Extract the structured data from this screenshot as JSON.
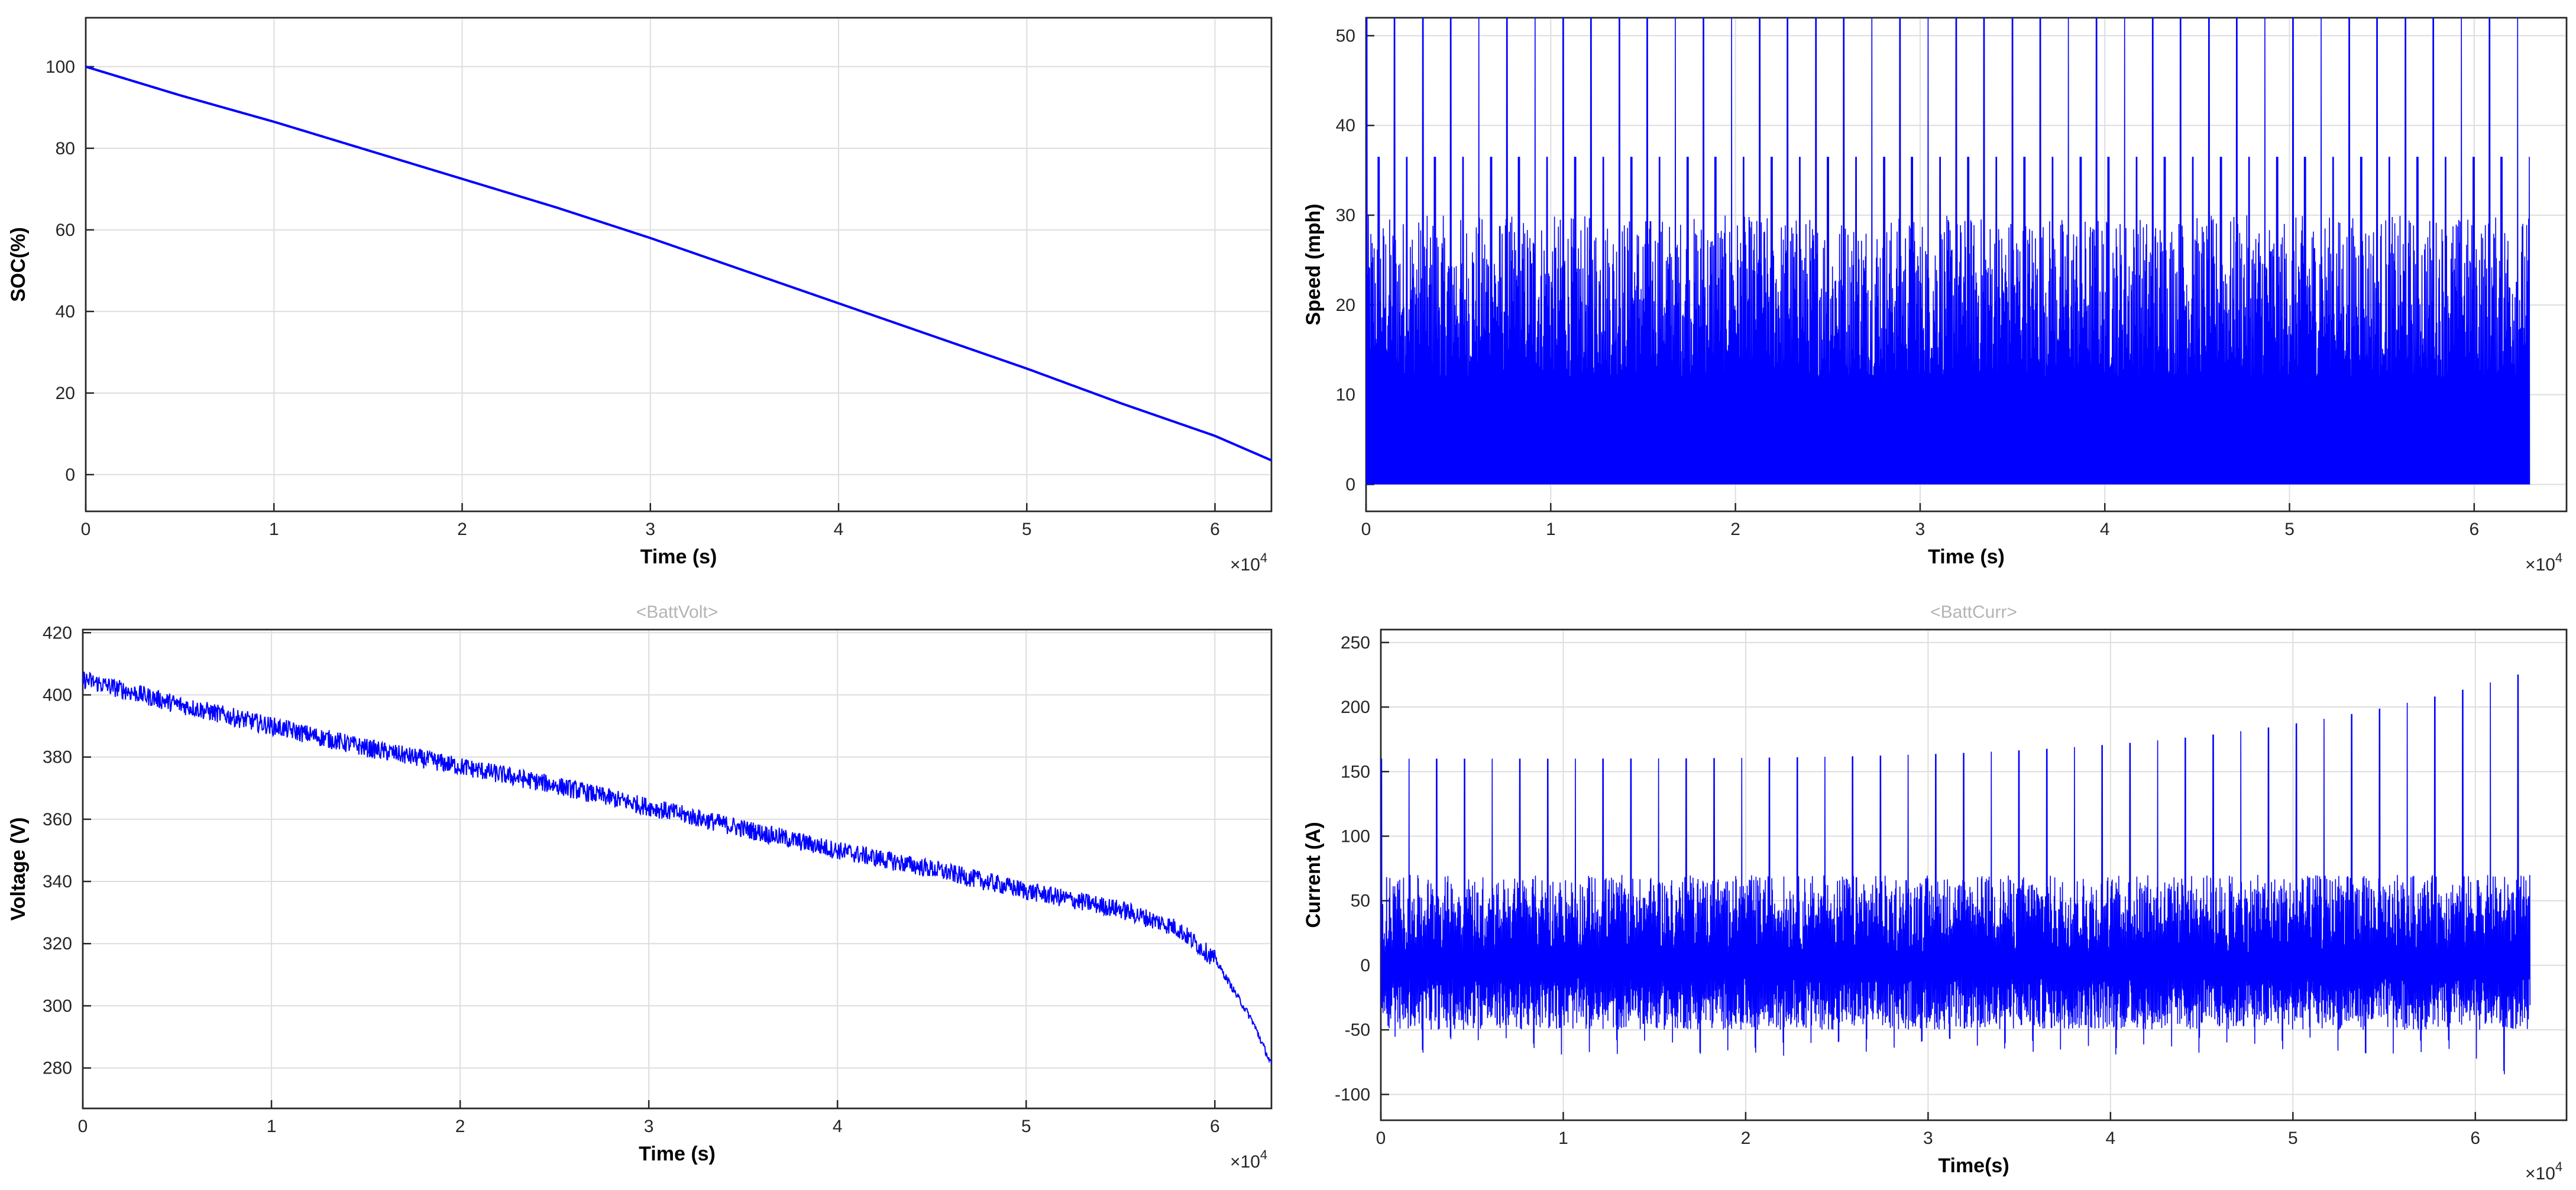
{
  "colors": {
    "line": "#0000ff",
    "grid": "#dedede",
    "axis": "#262626",
    "panel_title": "#b4b4b4",
    "background": "#ffffff"
  },
  "chart_data": [
    {
      "id": "soc",
      "type": "line",
      "title": "",
      "xlabel": "Time (s)",
      "ylabel": "SOC(%)",
      "x_exponent": "10",
      "x_exponent_power": "4",
      "xlim": [
        0,
        6.3
      ],
      "ylim": [
        -9,
        112
      ],
      "xticks": [
        0,
        1,
        2,
        3,
        4,
        5,
        6
      ],
      "yticks": [
        0,
        20,
        40,
        60,
        80,
        100
      ],
      "grid": true,
      "series": [
        {
          "x": [
            0,
            0.5,
            1,
            1.5,
            2,
            2.5,
            3,
            3.5,
            4,
            4.5,
            5,
            5.5,
            6,
            6.3
          ],
          "y": [
            100,
            93,
            86.5,
            79.5,
            72.5,
            65.5,
            58,
            50,
            42,
            34,
            26,
            17.5,
            9.5,
            3.5
          ]
        }
      ]
    },
    {
      "id": "speed",
      "type": "line",
      "title": "",
      "xlabel": "Time (s)",
      "ylabel": "Speed (mph)",
      "x_exponent": "10",
      "x_exponent_power": "4",
      "xlim": [
        0,
        6.5
      ],
      "ylim": [
        -3,
        52
      ],
      "xticks": [
        0,
        1,
        2,
        3,
        4,
        5,
        6
      ],
      "yticks": [
        0,
        10,
        20,
        30,
        40,
        50
      ],
      "grid": true,
      "signal": {
        "x_start": 0,
        "x_end": 6.3,
        "min": 0,
        "typical_max": 30,
        "spike_max": 52,
        "cycle_period": 0.152,
        "peak_per_cycle": 36.5
      }
    },
    {
      "id": "batt-volt",
      "type": "line",
      "title": "<BattVolt>",
      "xlabel": "Time (s)",
      "ylabel": "Voltage (V)",
      "x_exponent": "10",
      "x_exponent_power": "4",
      "xlim": [
        0,
        6.3
      ],
      "ylim": [
        267,
        421
      ],
      "xticks": [
        0,
        1,
        2,
        3,
        4,
        5,
        6
      ],
      "yticks": [
        280,
        300,
        320,
        340,
        360,
        380,
        400,
        420
      ],
      "grid": true,
      "noise_band": 3,
      "series": [
        {
          "x": [
            0,
            0.5,
            1,
            1.5,
            2,
            2.5,
            3,
            3.5,
            4,
            4.5,
            5,
            5.5,
            5.8,
            6.0,
            6.1,
            6.2,
            6.3
          ],
          "y": [
            405,
            397,
            390,
            383,
            377,
            371,
            364,
            357,
            350,
            344,
            337,
            331,
            325,
            315,
            305,
            295,
            281
          ]
        }
      ]
    },
    {
      "id": "batt-curr",
      "type": "line",
      "title": "<BattCurr>",
      "xlabel": "Time(s)",
      "ylabel": "Current (A)",
      "x_exponent": "10",
      "x_exponent_power": "4",
      "xlim": [
        0,
        6.5
      ],
      "ylim": [
        -120,
        260
      ],
      "xticks": [
        0,
        1,
        2,
        3,
        4,
        5,
        6
      ],
      "yticks": [
        -100,
        -50,
        0,
        50,
        100,
        150,
        200,
        250
      ],
      "grid": true,
      "signal": {
        "x_start": 0,
        "x_end": 6.3,
        "typical_min": -50,
        "typical_max": 70,
        "spike_start": 160,
        "spike_end": 228,
        "dip_min": -90,
        "cycle_period": 0.152
      }
    }
  ]
}
